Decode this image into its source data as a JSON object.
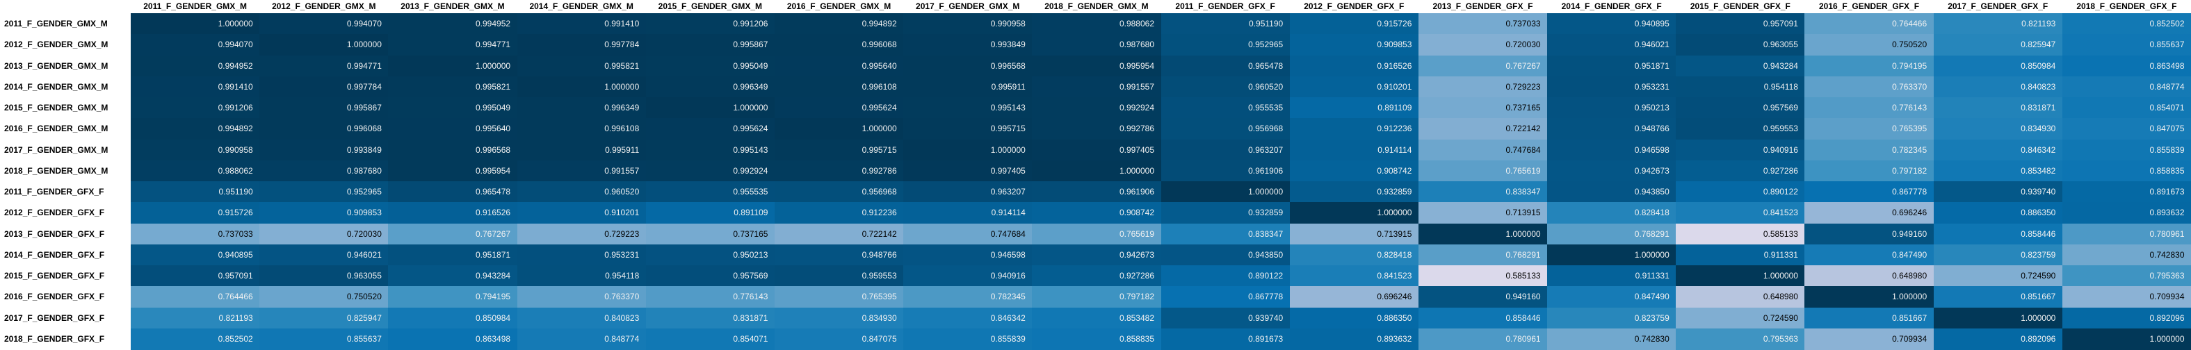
{
  "chart_data": {
    "type": "heatmap",
    "columns": [
      "2011_F_GENDER_GMX_M",
      "2012_F_GENDER_GMX_M",
      "2013_F_GENDER_GMX_M",
      "2014_F_GENDER_GMX_M",
      "2015_F_GENDER_GMX_M",
      "2016_F_GENDER_GMX_M",
      "2017_F_GENDER_GMX_M",
      "2018_F_GENDER_GMX_M",
      "2011_F_GENDER_GFX_F",
      "2012_F_GENDER_GFX_F",
      "2013_F_GENDER_GFX_F",
      "2014_F_GENDER_GFX_F",
      "2015_F_GENDER_GFX_F",
      "2016_F_GENDER_GFX_F",
      "2017_F_GENDER_GFX_F",
      "2018_F_GENDER_GFX_F"
    ],
    "rows": [
      "2011_F_GENDER_GMX_M",
      "2012_F_GENDER_GMX_M",
      "2013_F_GENDER_GMX_M",
      "2014_F_GENDER_GMX_M",
      "2015_F_GENDER_GMX_M",
      "2016_F_GENDER_GMX_M",
      "2017_F_GENDER_GMX_M",
      "2018_F_GENDER_GMX_M",
      "2011_F_GENDER_GFX_F",
      "2012_F_GENDER_GFX_F",
      "2013_F_GENDER_GFX_F",
      "2014_F_GENDER_GFX_F",
      "2015_F_GENDER_GFX_F",
      "2016_F_GENDER_GFX_F",
      "2017_F_GENDER_GFX_F",
      "2018_F_GENDER_GFX_F"
    ],
    "values": [
      [
        "1.000000",
        "0.994070",
        "0.994952",
        "0.991410",
        "0.991206",
        "0.994892",
        "0.990958",
        "0.988062",
        "0.951190",
        "0.915726",
        "0.737033",
        "0.940895",
        "0.957091",
        "0.764466",
        "0.821193",
        "0.852502"
      ],
      [
        "0.994070",
        "1.000000",
        "0.994771",
        "0.997784",
        "0.995867",
        "0.996068",
        "0.993849",
        "0.987680",
        "0.952965",
        "0.909853",
        "0.720030",
        "0.946021",
        "0.963055",
        "0.750520",
        "0.825947",
        "0.855637"
      ],
      [
        "0.994952",
        "0.994771",
        "1.000000",
        "0.995821",
        "0.995049",
        "0.995640",
        "0.996568",
        "0.995954",
        "0.965478",
        "0.916526",
        "0.767267",
        "0.951871",
        "0.943284",
        "0.794195",
        "0.850984",
        "0.863498"
      ],
      [
        "0.991410",
        "0.997784",
        "0.995821",
        "1.000000",
        "0.996349",
        "0.996108",
        "0.995911",
        "0.991557",
        "0.960520",
        "0.910201",
        "0.729223",
        "0.953231",
        "0.954118",
        "0.763370",
        "0.840823",
        "0.848774"
      ],
      [
        "0.991206",
        "0.995867",
        "0.995049",
        "0.996349",
        "1.000000",
        "0.995624",
        "0.995143",
        "0.992924",
        "0.955535",
        "0.891109",
        "0.737165",
        "0.950213",
        "0.957569",
        "0.776143",
        "0.831871",
        "0.854071"
      ],
      [
        "0.994892",
        "0.996068",
        "0.995640",
        "0.996108",
        "0.995624",
        "1.000000",
        "0.995715",
        "0.992786",
        "0.956968",
        "0.912236",
        "0.722142",
        "0.948766",
        "0.959553",
        "0.765395",
        "0.834930",
        "0.847075"
      ],
      [
        "0.990958",
        "0.993849",
        "0.996568",
        "0.995911",
        "0.995143",
        "0.995715",
        "1.000000",
        "0.997405",
        "0.963207",
        "0.914114",
        "0.747684",
        "0.946598",
        "0.940916",
        "0.782345",
        "0.846342",
        "0.855839"
      ],
      [
        "0.988062",
        "0.987680",
        "0.995954",
        "0.991557",
        "0.992924",
        "0.992786",
        "0.997405",
        "1.000000",
        "0.961906",
        "0.908742",
        "0.765619",
        "0.942673",
        "0.927286",
        "0.797182",
        "0.853482",
        "0.858835"
      ],
      [
        "0.951190",
        "0.952965",
        "0.965478",
        "0.960520",
        "0.955535",
        "0.956968",
        "0.963207",
        "0.961906",
        "1.000000",
        "0.932859",
        "0.838347",
        "0.943850",
        "0.890122",
        "0.867778",
        "0.939740",
        "0.891673"
      ],
      [
        "0.915726",
        "0.909853",
        "0.916526",
        "0.910201",
        "0.891109",
        "0.912236",
        "0.914114",
        "0.908742",
        "0.932859",
        "1.000000",
        "0.713915",
        "0.828418",
        "0.841523",
        "0.696246",
        "0.886350",
        "0.893632"
      ],
      [
        "0.737033",
        "0.720030",
        "0.767267",
        "0.729223",
        "0.737165",
        "0.722142",
        "0.747684",
        "0.765619",
        "0.838347",
        "0.713915",
        "1.000000",
        "0.768291",
        "0.585133",
        "0.949160",
        "0.858446",
        "0.780961"
      ],
      [
        "0.940895",
        "0.946021",
        "0.951871",
        "0.953231",
        "0.950213",
        "0.948766",
        "0.946598",
        "0.942673",
        "0.943850",
        "0.828418",
        "0.768291",
        "1.000000",
        "0.911331",
        "0.847490",
        "0.823759",
        "0.742830"
      ],
      [
        "0.957091",
        "0.963055",
        "0.943284",
        "0.954118",
        "0.957569",
        "0.959553",
        "0.940916",
        "0.927286",
        "0.890122",
        "0.841523",
        "0.585133",
        "0.911331",
        "1.000000",
        "0.648980",
        "0.724590",
        "0.795363"
      ],
      [
        "0.764466",
        "0.750520",
        "0.794195",
        "0.763370",
        "0.776143",
        "0.765395",
        "0.782345",
        "0.797182",
        "0.867778",
        "0.696246",
        "0.949160",
        "0.847490",
        "0.648980",
        "1.000000",
        "0.851667",
        "0.709934"
      ],
      [
        "0.821193",
        "0.825947",
        "0.850984",
        "0.840823",
        "0.831871",
        "0.834930",
        "0.846342",
        "0.853482",
        "0.939740",
        "0.886350",
        "0.858446",
        "0.823759",
        "0.724590",
        "0.851667",
        "1.000000",
        "0.892096"
      ],
      [
        "0.852502",
        "0.855637",
        "0.863498",
        "0.848774",
        "0.854071",
        "0.847075",
        "0.855839",
        "0.858835",
        "0.891673",
        "0.893632",
        "0.780961",
        "0.742830",
        "0.795363",
        "0.709934",
        "0.892096",
        "1.000000"
      ]
    ],
    "color_scale": "PuBu"
  }
}
